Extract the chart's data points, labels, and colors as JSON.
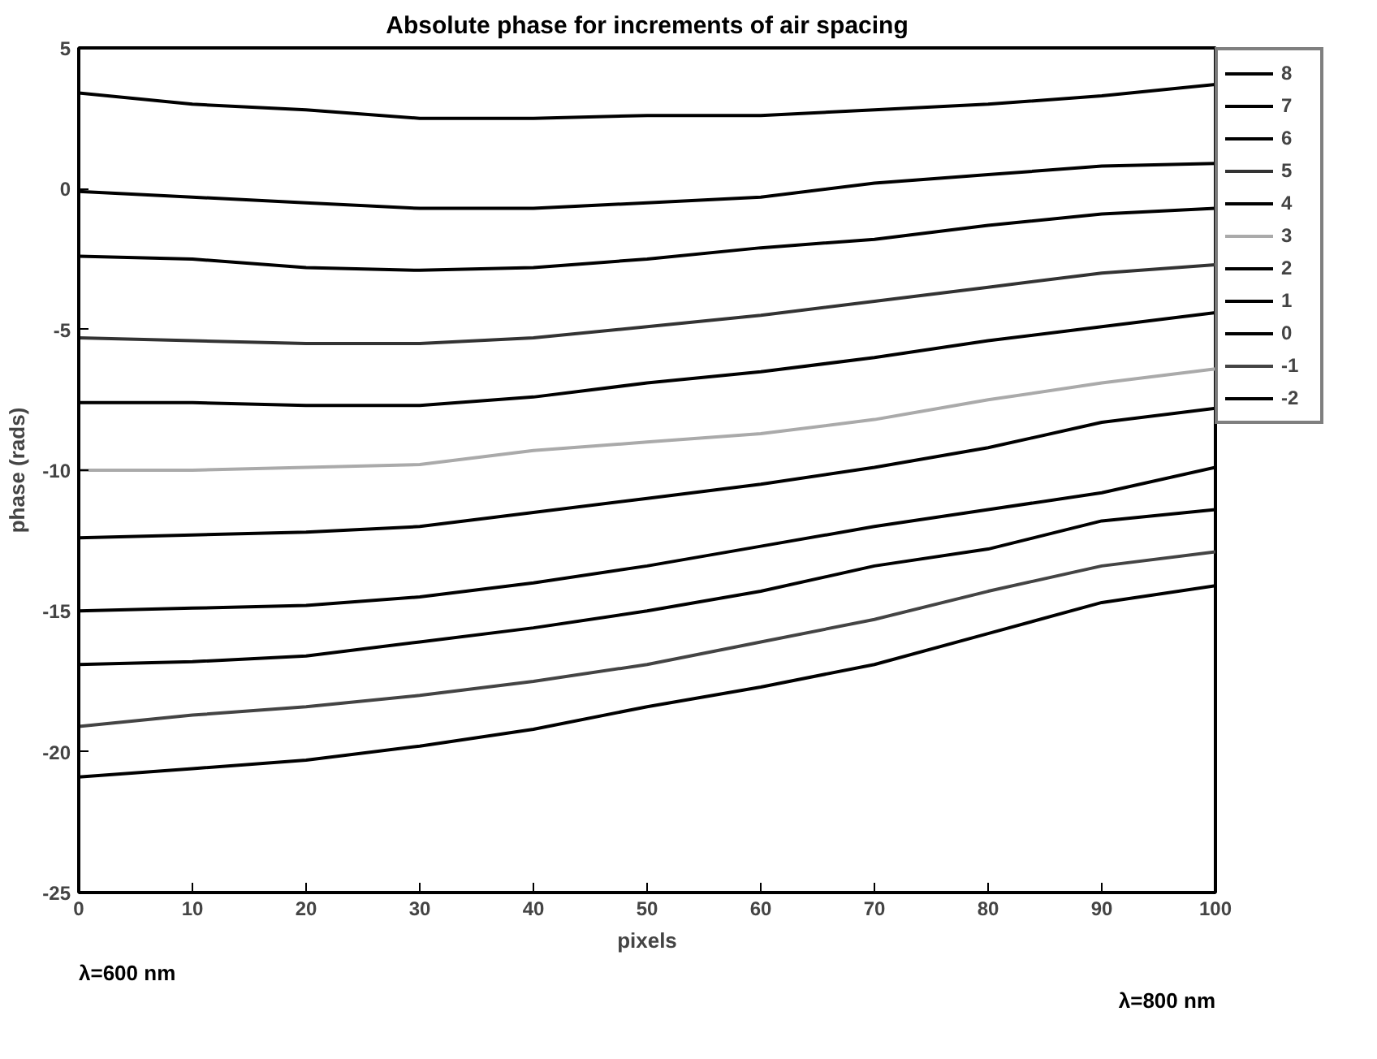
{
  "chart_data": {
    "type": "line",
    "title": "Absolute phase for increments of air spacing",
    "xlabel": "pixels",
    "ylabel": "phase (rads)",
    "annotations": [
      "λ=600 nm",
      "λ=800 nm"
    ],
    "x": [
      0,
      10,
      20,
      30,
      40,
      50,
      60,
      70,
      80,
      90,
      100
    ],
    "xlim": [
      0,
      100
    ],
    "xticks": [
      0,
      10,
      20,
      30,
      40,
      50,
      60,
      70,
      80,
      90,
      100
    ],
    "ylim": [
      -25,
      5
    ],
    "yticks": [
      -25,
      -20,
      -15,
      -10,
      -5,
      0,
      5
    ],
    "grid": false,
    "legend": "right",
    "line_style": "solid",
    "marker": "none",
    "series": [
      {
        "name": "8",
        "color": "#000000",
        "values": [
          3.4,
          3.0,
          2.8,
          2.5,
          2.5,
          2.6,
          2.6,
          2.8,
          3.0,
          3.3,
          3.7
        ]
      },
      {
        "name": "7",
        "color": "#000000",
        "values": [
          -0.1,
          -0.3,
          -0.5,
          -0.7,
          -0.7,
          -0.5,
          -0.3,
          0.2,
          0.5,
          0.8,
          0.9
        ]
      },
      {
        "name": "6",
        "color": "#000000",
        "values": [
          -2.4,
          -2.5,
          -2.8,
          -2.9,
          -2.8,
          -2.5,
          -2.1,
          -1.8,
          -1.3,
          -0.9,
          -0.7
        ]
      },
      {
        "name": "5",
        "color": "#333333",
        "values": [
          -5.3,
          -5.4,
          -5.5,
          -5.5,
          -5.3,
          -4.9,
          -4.5,
          -4.0,
          -3.5,
          -3.0,
          -2.7
        ]
      },
      {
        "name": "4",
        "color": "#000000",
        "values": [
          -7.6,
          -7.6,
          -7.7,
          -7.7,
          -7.4,
          -6.9,
          -6.5,
          -6.0,
          -5.4,
          -4.9,
          -4.4
        ]
      },
      {
        "name": "3",
        "color": "#aaaaaa",
        "values": [
          -10.0,
          -10.0,
          -9.9,
          -9.8,
          -9.3,
          -9.0,
          -8.7,
          -8.2,
          -7.5,
          -6.9,
          -6.4
        ]
      },
      {
        "name": "2",
        "color": "#000000",
        "values": [
          -12.4,
          -12.3,
          -12.2,
          -12.0,
          -11.5,
          -11.0,
          -10.5,
          -9.9,
          -9.2,
          -8.3,
          -7.8
        ]
      },
      {
        "name": "1",
        "color": "#000000",
        "values": [
          -15.0,
          -14.9,
          -14.8,
          -14.5,
          -14.0,
          -13.4,
          -12.7,
          -12.0,
          -11.4,
          -10.8,
          -9.9
        ]
      },
      {
        "name": "0",
        "color": "#000000",
        "values": [
          -16.9,
          -16.8,
          -16.6,
          -16.1,
          -15.6,
          -15.0,
          -14.3,
          -13.4,
          -12.8,
          -11.8,
          -11.4
        ]
      },
      {
        "name": "-1",
        "color": "#444444",
        "values": [
          -19.1,
          -18.7,
          -18.4,
          -18.0,
          -17.5,
          -16.9,
          -16.1,
          -15.3,
          -14.3,
          -13.4,
          -12.9
        ]
      },
      {
        "name": "-2",
        "color": "#000000",
        "values": [
          -20.9,
          -20.6,
          -20.3,
          -19.8,
          -19.2,
          -18.4,
          -17.7,
          -16.9,
          -15.8,
          -14.7,
          -14.1
        ]
      }
    ]
  }
}
